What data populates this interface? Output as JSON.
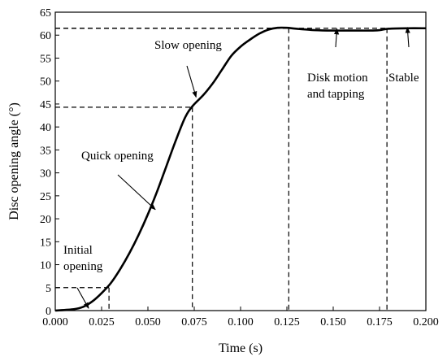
{
  "chart_data": {
    "type": "line",
    "xlabel": "Time (s)",
    "ylabel": "Disc opening angle (°)",
    "xlim": [
      0.0,
      0.2
    ],
    "ylim": [
      0,
      65
    ],
    "x_ticks": [
      "0.000",
      "0.025",
      "0.050",
      "0.075",
      "0.100",
      "0.125",
      "0.150",
      "0.175",
      "0.200"
    ],
    "y_ticks": [
      "0",
      "5",
      "10",
      "15",
      "20",
      "25",
      "30",
      "35",
      "40",
      "45",
      "50",
      "55",
      "60",
      "65"
    ],
    "grid": false,
    "series": [
      {
        "x": [
          0.0,
          0.01,
          0.015,
          0.02,
          0.025,
          0.03,
          0.035,
          0.04,
          0.045,
          0.05,
          0.055,
          0.06,
          0.065,
          0.07,
          0.074,
          0.08,
          0.085,
          0.09,
          0.095,
          0.1,
          0.105,
          0.11,
          0.115,
          0.12,
          0.125,
          0.13,
          0.14,
          0.15,
          0.16,
          0.17,
          0.175,
          0.18,
          0.19,
          0.2
        ],
        "y": [
          0.0,
          0.3,
          0.8,
          2.0,
          3.8,
          6.0,
          9.0,
          12.5,
          16.5,
          21.0,
          26.0,
          31.5,
          37.0,
          42.0,
          44.5,
          47.0,
          49.5,
          52.5,
          55.5,
          57.5,
          59.0,
          60.3,
          61.2,
          61.6,
          61.6,
          61.4,
          61.1,
          61.0,
          61.0,
          61.0,
          61.1,
          61.4,
          61.5,
          61.5
        ]
      }
    ],
    "reference_lines": [
      {
        "x": 0.029,
        "y": 5
      },
      {
        "x": 0.074,
        "y": 44.3
      },
      {
        "x": 0.126,
        "y": 61.5
      },
      {
        "x": 0.179,
        "y": 61.5
      }
    ],
    "annotations": [
      {
        "lines": [
          "Initial",
          "opening"
        ],
        "arrow_to": {
          "x": 0.018,
          "y": 0.5
        }
      },
      {
        "lines": [
          "Quick opening"
        ],
        "arrow_to": {
          "x": 0.054,
          "y": 22
        }
      },
      {
        "lines": [
          "Slow opening"
        ],
        "arrow_to": {
          "x": 0.076,
          "y": 46.5
        }
      },
      {
        "lines": [
          "Disk motion",
          "and tapping"
        ],
        "arrow_to": {
          "x": 0.152,
          "y": 61.4
        }
      },
      {
        "lines": [
          "Stable"
        ],
        "arrow_to": {
          "x": 0.19,
          "y": 61.7
        }
      }
    ]
  }
}
